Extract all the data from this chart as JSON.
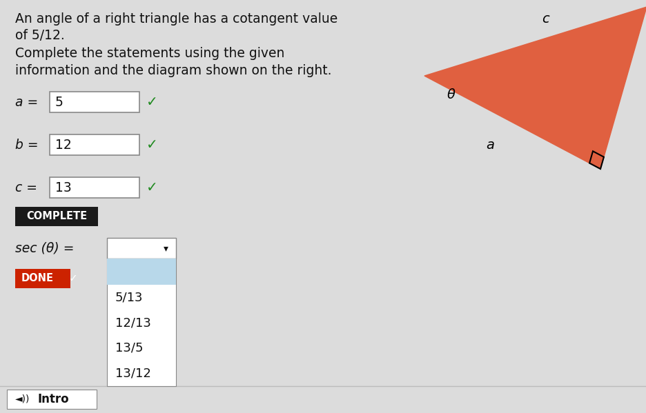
{
  "title_line1": "An angle of a right triangle has a cotangent value",
  "title_line2": "of 5/12.",
  "subtitle_line1": "Complete the statements using the given",
  "subtitle_line2": "information and the diagram shown on the right.",
  "a_label": "a =",
  "a_value": "5",
  "b_label": "b =",
  "b_value": "12",
  "c_label": "c =",
  "c_value": "13",
  "complete_btn": "COMPLETE",
  "sec_label": "sec (θ) =",
  "done_btn": "DONE",
  "dropdown_options": [
    "5/13",
    "12/13",
    "13/5",
    "13/12"
  ],
  "dropdown_highlight_color": "#b8d8ea",
  "bg_color": "#dcdcdc",
  "triangle_color": "#e06040",
  "theta_label": "θ",
  "a_tri_label": "a",
  "c_tri_label": "c",
  "complete_btn_color": "#1a1a1a",
  "done_btn_color": "#cc2200",
  "checkmark_color": "#228B22",
  "box_border_color": "#888888",
  "white": "#ffffff",
  "black": "#111111"
}
